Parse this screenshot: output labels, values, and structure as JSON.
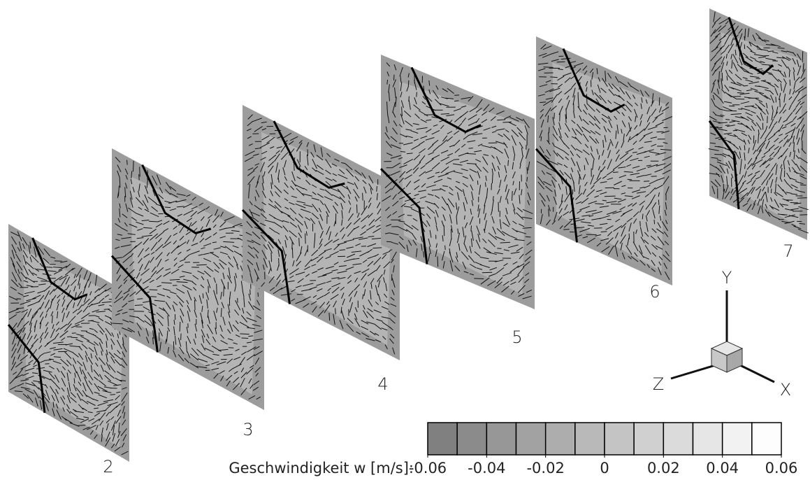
{
  "planes": [
    {
      "label": "2"
    },
    {
      "label": "3"
    },
    {
      "label": "4"
    },
    {
      "label": "5"
    },
    {
      "label": "6"
    },
    {
      "label": "7"
    }
  ],
  "axes": {
    "y": "Y",
    "z": "Z",
    "x": "X"
  },
  "colorbar": {
    "label": "Geschwindigkeit w [m/s]:",
    "ticks": [
      -0.06,
      -0.04,
      -0.02,
      0,
      0.02,
      0.04,
      0.06
    ]
  }
}
